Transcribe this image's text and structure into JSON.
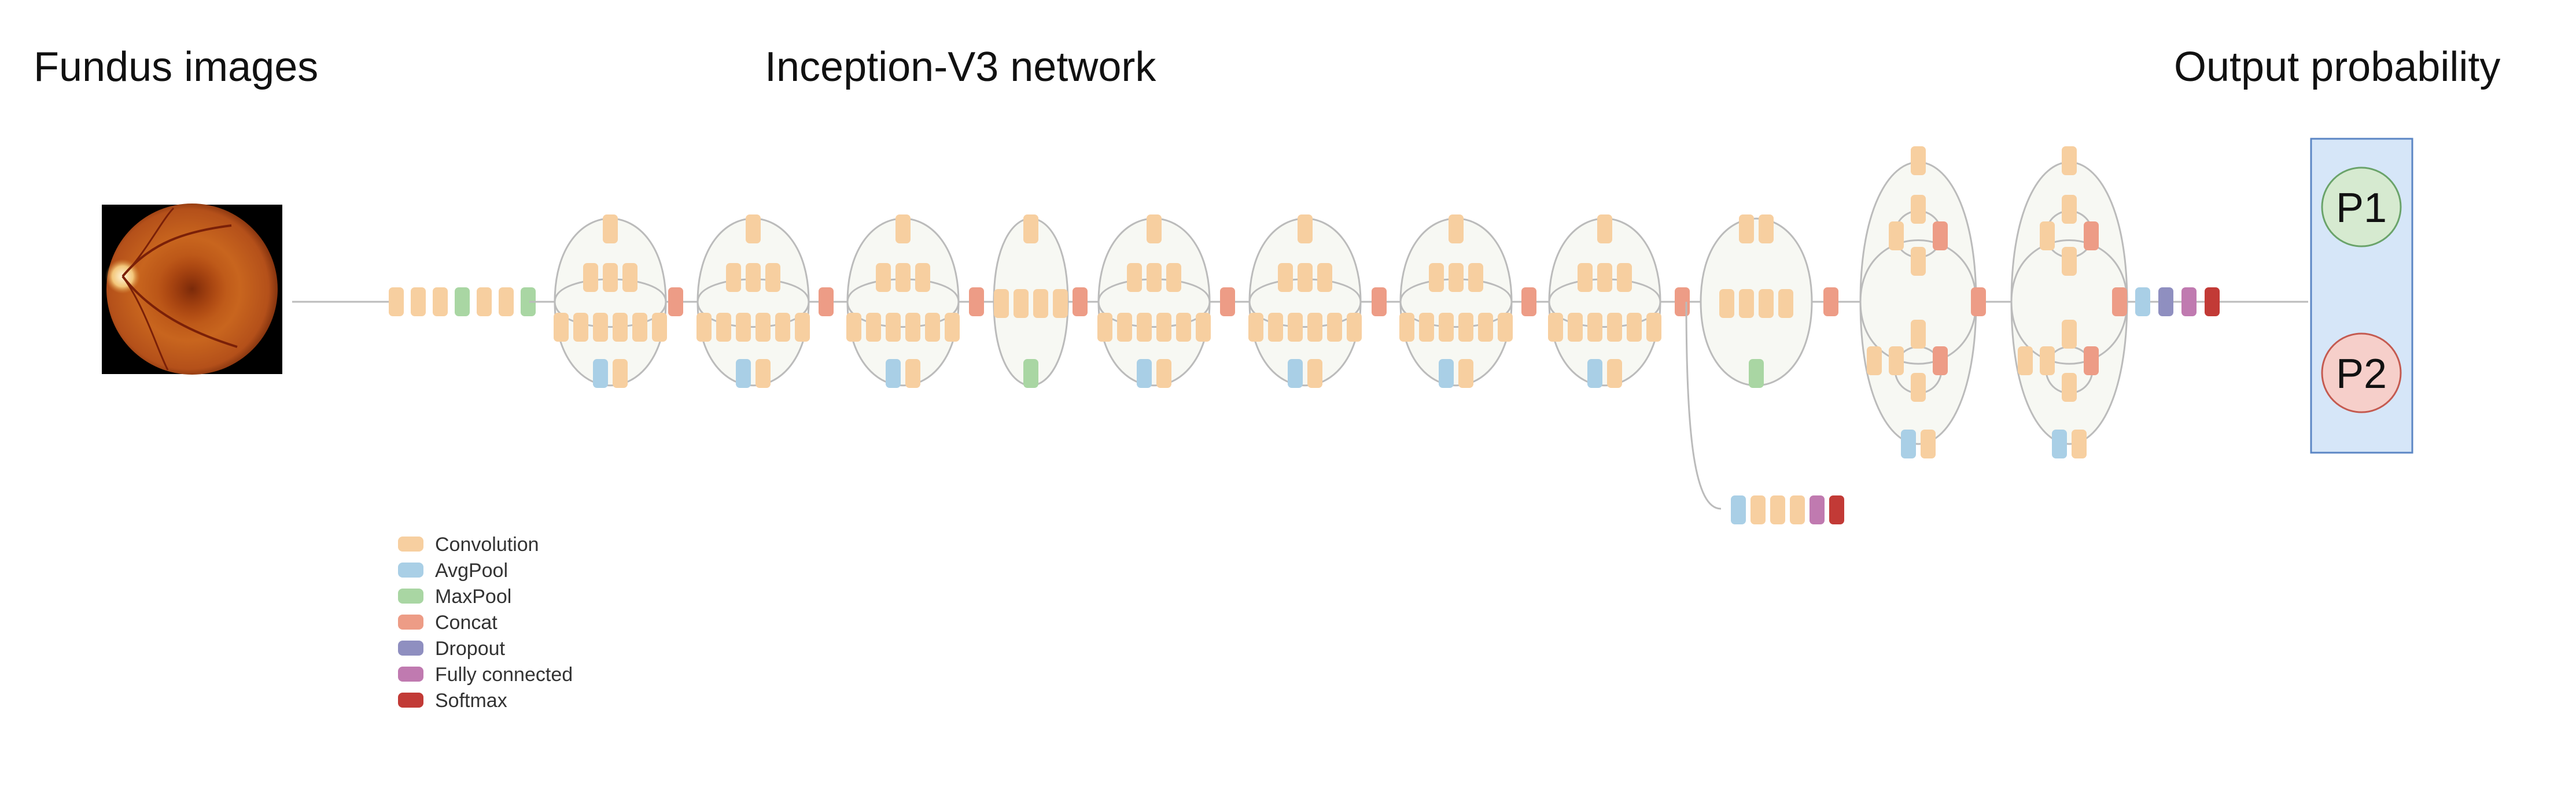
{
  "titles": {
    "input": "Fundus images",
    "network": "Inception-V3 network",
    "output": "Output probability"
  },
  "legend": [
    {
      "label": "Convolution",
      "color": "#f7cfa0"
    },
    {
      "label": "AvgPool",
      "color": "#a9cfe6"
    },
    {
      "label": "MaxPool",
      "color": "#a9d6a3"
    },
    {
      "label": "Concat",
      "color": "#ed9c86"
    },
    {
      "label": "Dropout",
      "color": "#8f8fc0"
    },
    {
      "label": "Fully connected",
      "color": "#c07ab0"
    },
    {
      "label": "Softmax",
      "color": "#c23a36"
    }
  ],
  "outputs": [
    {
      "label": "P1",
      "color": "#d6ead0"
    },
    {
      "label": "P2",
      "color": "#f6cfca"
    }
  ],
  "colors": {
    "output_panel": "#d6e6f8",
    "output_panel_border": "#5b86c4",
    "connector": "#bbbbbb",
    "module_fill": "#f7f8f3"
  },
  "icons": {
    "input_image": "retina-fundus-photo"
  }
}
